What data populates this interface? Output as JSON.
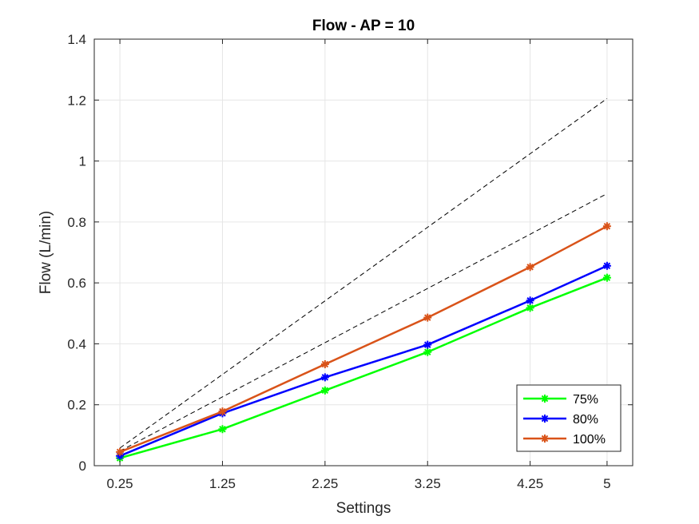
{
  "chart_data": {
    "type": "line",
    "title": "Flow - AP = 10",
    "xlabel": "Settings",
    "ylabel": "Flow (L/min)",
    "x": [
      0.25,
      1.25,
      2.25,
      3.25,
      4.25,
      5
    ],
    "x_tick_labels": [
      "0.25",
      "1.25",
      "2.25",
      "3.25",
      "4.25",
      "5"
    ],
    "xlim": [
      0,
      5.25
    ],
    "ylim": [
      0,
      1.4
    ],
    "y_ticks": [
      0,
      0.2,
      0.4,
      0.6,
      0.8,
      1,
      1.2,
      1.4
    ],
    "y_tick_labels": [
      "0",
      "0.2",
      "0.4",
      "0.6",
      "0.8",
      "1",
      "1.2",
      "1.4"
    ],
    "grid": true,
    "legend_position": "bottom-right",
    "series": [
      {
        "name": "75%",
        "color": "#00ff00",
        "marker": "asterisk",
        "values": [
          0.025,
          0.12,
          0.247,
          0.373,
          0.518,
          0.617
        ]
      },
      {
        "name": "80%",
        "color": "#0000ff",
        "marker": "asterisk",
        "values": [
          0.032,
          0.172,
          0.29,
          0.397,
          0.542,
          0.656
        ]
      },
      {
        "name": "100%",
        "color": "#d95319",
        "marker": "asterisk",
        "values": [
          0.045,
          0.178,
          0.333,
          0.486,
          0.652,
          0.786
        ]
      }
    ],
    "reference_lines": [
      {
        "style": "dashed",
        "color": "#000000",
        "x": [
          0.25,
          5
        ],
        "values": [
          0.058,
          1.205
        ]
      },
      {
        "style": "dashed",
        "color": "#000000",
        "x": [
          0.25,
          5
        ],
        "values": [
          0.048,
          0.893
        ]
      }
    ]
  }
}
